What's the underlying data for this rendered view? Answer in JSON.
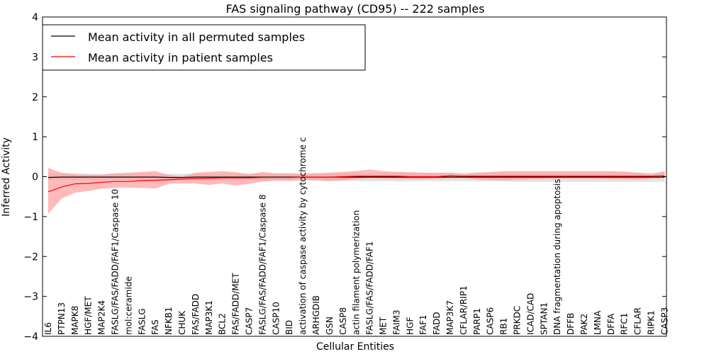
{
  "chart_data": {
    "type": "line",
    "title": "FAS signaling pathway (CD95) -- 222 samples",
    "xlabel": "Cellular Entities",
    "ylabel": "Inferred Activity",
    "ylim": [
      -4,
      4
    ],
    "yticks": [
      -4,
      -3,
      -2,
      -1,
      0,
      1,
      2,
      3,
      4
    ],
    "ytick_labels": [
      "−4",
      "−3",
      "−2",
      "−1",
      "0",
      "1",
      "2",
      "3",
      "4"
    ],
    "legend_position": "upper-left",
    "categories": [
      "IL6",
      "PTPN13",
      "MAPK8",
      "HGF/MET",
      "MAP2K4",
      "FASLG/FAS/FADD/FAF1/Caspase 10",
      "mol:ceramide",
      "FASLG",
      "FAS",
      "NFKB1",
      "CHUK",
      "FAS/FADD",
      "MAP3K1",
      "BCL2",
      "FAS/FADD/MET",
      "CASP7",
      "FASLG/FAS/FADD/FAF1/Caspase 8",
      "CASP10",
      "BID",
      "activation of caspase activity by cytochrome c",
      "ARHGDIB",
      "GSN",
      "CASP8",
      "actin filament polymerization",
      "FASLG/FAS/FADD/FAF1",
      "MET",
      "FAIM3",
      "HGF",
      "FAF1",
      "FADD",
      "MAP3K7",
      "CFLAR/RIP1",
      "PARP1",
      "CASP6",
      "RB1",
      "PRKDC",
      "ICAD/CAD",
      "SPTAN1",
      "DNA fragmentation during apoptosis",
      "DFFB",
      "PAK2",
      "LMNA",
      "DFFA",
      "RFC1",
      "CFLAR",
      "RIPK1",
      "CASP3"
    ],
    "series": [
      {
        "name": "Mean activity in all permuted samples",
        "color": "#000000",
        "values": [
          -0.02,
          -0.01,
          -0.01,
          -0.01,
          -0.01,
          -0.01,
          -0.01,
          -0.01,
          -0.01,
          -0.02,
          -0.02,
          -0.01,
          -0.01,
          -0.01,
          -0.01,
          -0.01,
          -0.01,
          -0.01,
          -0.01,
          -0.01,
          -0.01,
          -0.01,
          -0.01,
          -0.01,
          -0.01,
          -0.01,
          -0.01,
          -0.01,
          -0.01,
          -0.01,
          -0.01,
          -0.01,
          -0.01,
          -0.01,
          -0.01,
          -0.01,
          -0.01,
          -0.01,
          -0.01,
          -0.01,
          -0.01,
          -0.01,
          -0.01,
          -0.01,
          -0.01,
          -0.01,
          -0.01
        ],
        "band_lower": [
          -0.1,
          -0.08,
          -0.09,
          -0.08,
          -0.08,
          -0.09,
          -0.08,
          -0.09,
          -0.08,
          -0.1,
          -0.1,
          -0.09,
          -0.08,
          -0.09,
          -0.09,
          -0.1,
          -0.1,
          -0.1,
          -0.11,
          -0.1,
          -0.1,
          -0.11,
          -0.11,
          -0.11,
          -0.11,
          -0.11,
          -0.12,
          -0.12,
          -0.11,
          -0.11,
          -0.11,
          -0.11,
          -0.12,
          -0.12,
          -0.12,
          -0.13,
          -0.13,
          -0.13,
          -0.13,
          -0.13,
          -0.13,
          -0.13,
          -0.13,
          -0.13,
          -0.13,
          -0.13,
          -0.13
        ],
        "band_upper": [
          0.09,
          0.08,
          0.08,
          0.07,
          0.07,
          0.08,
          0.07,
          0.08,
          0.07,
          0.07,
          0.07,
          0.08,
          0.07,
          0.07,
          0.08,
          0.08,
          0.08,
          0.08,
          0.09,
          0.08,
          0.09,
          0.09,
          0.09,
          0.09,
          0.09,
          0.09,
          0.1,
          0.1,
          0.1,
          0.1,
          0.1,
          0.1,
          0.1,
          0.1,
          0.1,
          0.1,
          0.1,
          0.1,
          0.1,
          0.1,
          0.1,
          0.1,
          0.1,
          0.1,
          0.1,
          0.1,
          0.1
        ]
      },
      {
        "name": "Mean activity in patient samples",
        "color": "#ff0000",
        "fill": "#ff9c9c",
        "values": [
          -0.38,
          -0.26,
          -0.18,
          -0.17,
          -0.14,
          -0.12,
          -0.12,
          -0.1,
          -0.09,
          -0.08,
          -0.06,
          -0.05,
          -0.04,
          -0.03,
          -0.03,
          -0.03,
          -0.02,
          -0.02,
          -0.02,
          -0.01,
          -0.01,
          -0.01,
          0.0,
          0.01,
          0.01,
          0.01,
          0.01,
          0.0,
          0.0,
          0.0,
          0.02,
          0.01,
          0.01,
          0.01,
          0.01,
          0.01,
          0.01,
          0.01,
          0.01,
          0.01,
          0.01,
          0.01,
          0.01,
          0.01,
          0.01,
          0.01,
          0.02
        ],
        "band_lower": [
          -0.93,
          -0.55,
          -0.4,
          -0.36,
          -0.3,
          -0.28,
          -0.27,
          -0.28,
          -0.3,
          -0.18,
          -0.17,
          -0.17,
          -0.21,
          -0.17,
          -0.22,
          -0.18,
          -0.12,
          -0.1,
          -0.1,
          -0.08,
          -0.09,
          -0.11,
          -0.09,
          -0.06,
          -0.03,
          -0.05,
          -0.05,
          -0.06,
          -0.06,
          -0.05,
          -0.04,
          -0.03,
          -0.07,
          -0.08,
          -0.09,
          -0.08,
          -0.06,
          -0.06,
          -0.05,
          -0.05,
          -0.05,
          -0.05,
          -0.06,
          -0.06,
          -0.07,
          -0.05,
          -0.03
        ],
        "band_upper": [
          0.22,
          0.1,
          0.06,
          0.05,
          0.05,
          0.08,
          0.1,
          0.12,
          0.14,
          0.04,
          0.0,
          0.1,
          0.12,
          0.14,
          0.11,
          0.06,
          0.12,
          0.08,
          0.08,
          0.07,
          0.08,
          0.1,
          0.12,
          0.14,
          0.18,
          0.14,
          0.12,
          0.11,
          0.1,
          0.09,
          0.1,
          0.06,
          0.1,
          0.12,
          0.14,
          0.14,
          0.14,
          0.14,
          0.14,
          0.14,
          0.14,
          0.14,
          0.14,
          0.13,
          0.1,
          0.06,
          0.14
        ]
      }
    ]
  }
}
